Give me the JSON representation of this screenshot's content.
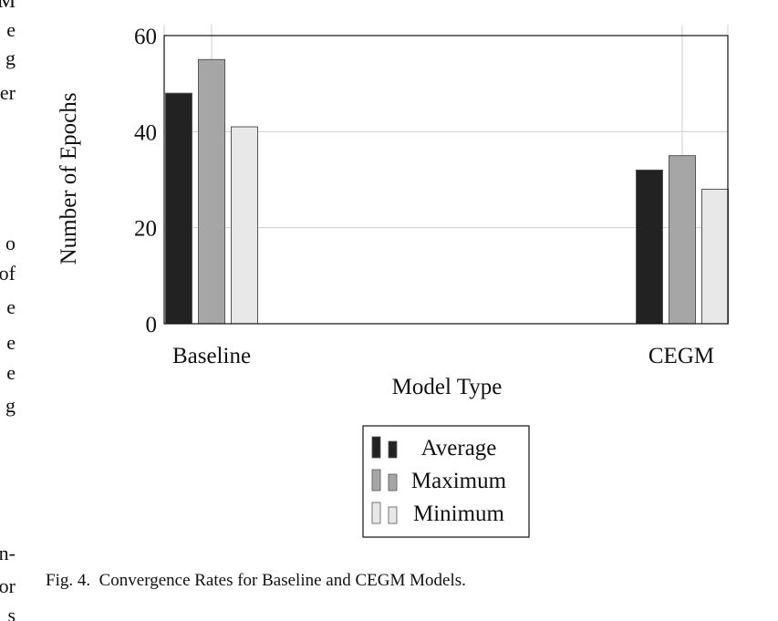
{
  "margin_text": [
    "M",
    "e",
    "g",
    "er",
    "o",
    "of",
    "e",
    "e",
    "e",
    "g",
    "n-",
    "or",
    "s"
  ],
  "chart_data": {
    "type": "bar",
    "categories": [
      "Baseline",
      "CEGM"
    ],
    "series": [
      {
        "name": "Average",
        "values": [
          48,
          32
        ],
        "color": "#222222"
      },
      {
        "name": "Maximum",
        "values": [
          55,
          35
        ],
        "color": "#a6a6a6"
      },
      {
        "name": "Minimum",
        "values": [
          41,
          28
        ],
        "color": "#e8e8e8"
      }
    ],
    "xlabel": "Model Type",
    "ylabel": "Number of Epochs",
    "ylim": [
      0,
      60
    ],
    "yticks": [
      0,
      20,
      40,
      60
    ],
    "grid": true,
    "legend": "bottom"
  },
  "caption": {
    "label": "Fig. 4.",
    "text": "Convergence Rates for Baseline and CEGM Models."
  }
}
